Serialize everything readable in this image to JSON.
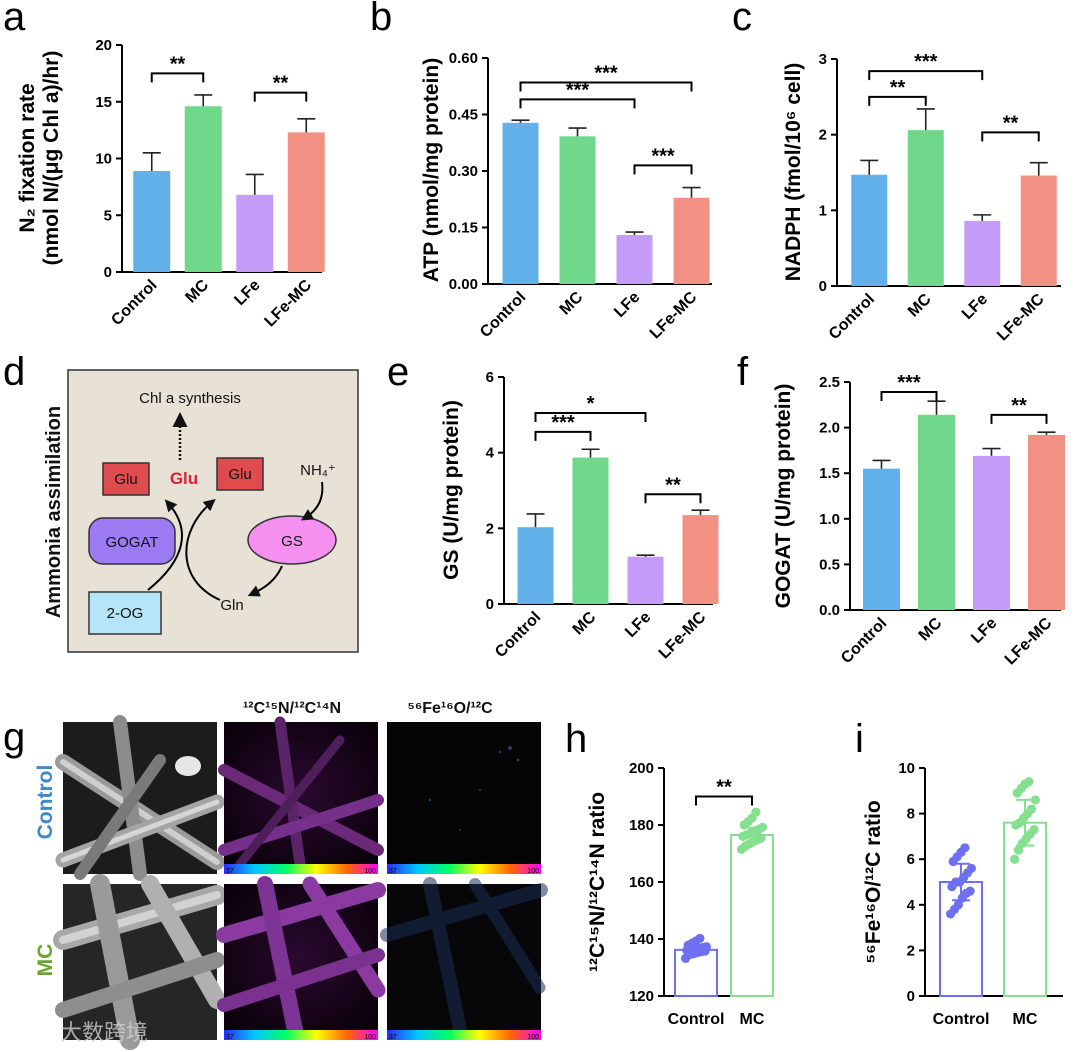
{
  "panels": {
    "a": "a",
    "b": "b",
    "c": "c",
    "d": "d",
    "e": "e",
    "f": "f",
    "g": "g",
    "h": "h",
    "i": "i"
  },
  "colors": {
    "Control": "#62b0ea",
    "MC": "#6fd88b",
    "LFe": "#c49bf7",
    "LFe-MC": "#f39084",
    "h_control": "#6f6ff2",
    "h_mc": "#84e08f",
    "diagram_bg": "#e8e1d6",
    "glu_box": "#e04b4f",
    "gogat_box": "#9b7af2",
    "gs_oval": "#f58ff0",
    "og_box": "#b5e6f7",
    "glu_text": "#e02030"
  },
  "chart_data": [
    {
      "id": "a",
      "type": "bar",
      "categories": [
        "Control",
        "MC",
        "LFe",
        "LFe-MC"
      ],
      "values": [
        8.9,
        14.6,
        6.8,
        12.3
      ],
      "errors": [
        1.6,
        1.0,
        1.8,
        1.2
      ],
      "ylim": [
        0,
        20
      ],
      "yticks": [
        "0",
        "5",
        "10",
        "15",
        "20"
      ],
      "ylabel_line1": "N₂ fixation rate",
      "ylabel_line2": "(nmol N/(μg Chl a)/hr)",
      "sig": [
        {
          "from": 0,
          "to": 1,
          "label": "**",
          "at": 17.5
        },
        {
          "from": 2,
          "to": 3,
          "label": "**",
          "at": 15.8
        }
      ]
    },
    {
      "id": "b",
      "type": "bar",
      "categories": [
        "Control",
        "MC",
        "LFe",
        "LFe-MC"
      ],
      "values": [
        0.428,
        0.392,
        0.13,
        0.229
      ],
      "errors": [
        0.007,
        0.022,
        0.008,
        0.027
      ],
      "ylim": [
        0,
        0.6
      ],
      "yticks": [
        "0.00",
        "0.15",
        "0.30",
        "0.45",
        "0.60"
      ],
      "ylabel": "ATP (nmol/mg protein)",
      "sig": [
        {
          "from": 0,
          "to": 3,
          "label": "***",
          "at": 0.535
        },
        {
          "from": 0,
          "to": 2,
          "label": "***",
          "at": 0.49
        },
        {
          "from": 2,
          "to": 3,
          "label": "***",
          "at": 0.315
        }
      ]
    },
    {
      "id": "c",
      "type": "bar",
      "categories": [
        "Control",
        "MC",
        "LFe",
        "LFe-MC"
      ],
      "values": [
        1.47,
        2.06,
        0.86,
        1.46
      ],
      "errors": [
        0.19,
        0.28,
        0.08,
        0.17
      ],
      "ylim": [
        0,
        3
      ],
      "yticks": [
        "0",
        "1",
        "2",
        "3"
      ],
      "ylabel": "NADPH (fmol/10⁶ cell)",
      "sig": [
        {
          "from": 0,
          "to": 2,
          "label": "***",
          "at": 2.84
        },
        {
          "from": 0,
          "to": 1,
          "label": "**",
          "at": 2.5
        },
        {
          "from": 2,
          "to": 3,
          "label": "**",
          "at": 2.03
        }
      ]
    },
    {
      "id": "e",
      "type": "bar",
      "categories": [
        "Control",
        "MC",
        "LFe",
        "LFe-MC"
      ],
      "values": [
        2.03,
        3.87,
        1.25,
        2.35
      ],
      "errors": [
        0.35,
        0.22,
        0.04,
        0.13
      ],
      "ylim": [
        0,
        6
      ],
      "yticks": [
        "0",
        "2",
        "4",
        "6"
      ],
      "ylabel": "GS (U/mg protein)",
      "sig": [
        {
          "from": 0,
          "to": 2,
          "label": "*",
          "at": 5.05
        },
        {
          "from": 0,
          "to": 1,
          "label": "***",
          "at": 4.55
        },
        {
          "from": 2,
          "to": 3,
          "label": "**",
          "at": 2.9
        }
      ]
    },
    {
      "id": "f",
      "type": "bar",
      "categories": [
        "Control",
        "MC",
        "LFe",
        "LFe-MC"
      ],
      "values": [
        1.55,
        2.14,
        1.69,
        1.92
      ],
      "errors": [
        0.09,
        0.15,
        0.08,
        0.03
      ],
      "ylim": [
        0,
        2.5
      ],
      "yticks": [
        "0.0",
        "0.5",
        "1.0",
        "1.5",
        "2.0",
        "2.5"
      ],
      "ylabel": "GOGAT (U/mg protein)",
      "sig": [
        {
          "from": 0,
          "to": 1,
          "label": "***",
          "at": 2.39
        },
        {
          "from": 2,
          "to": 3,
          "label": "**",
          "at": 2.14
        }
      ]
    },
    {
      "id": "h",
      "type": "scatter-bar",
      "categories": [
        "Control",
        "MC"
      ],
      "values": [
        136.2,
        176.5
      ],
      "errors": [
        1.6,
        2.6
      ],
      "points": [
        [
          133.2,
          134.5,
          134.8,
          135.2,
          135.5,
          135.8,
          136.0,
          136.2,
          136.5,
          136.8,
          137.0,
          137.3,
          137.8,
          138.5,
          139.3,
          140.2
        ],
        [
          171.5,
          172.6,
          173.4,
          174.1,
          174.8,
          175.4,
          176.0,
          176.6,
          177.2,
          177.8,
          178.4,
          179.2,
          180.0,
          181.2,
          182.4,
          184.5
        ]
      ],
      "ylim": [
        120,
        200
      ],
      "yticks": [
        "120",
        "140",
        "160",
        "180",
        "200"
      ],
      "ylabel": "¹²C¹⁵N/¹²C¹⁴N ratio",
      "sig": [
        {
          "from": 0,
          "to": 1,
          "label": "**",
          "at": 190
        }
      ]
    },
    {
      "id": "i",
      "type": "scatter-bar",
      "categories": [
        "Control",
        "MC"
      ],
      "values": [
        5.0,
        7.6
      ],
      "errors": [
        0.8,
        1.0
      ],
      "points": [
        [
          3.6,
          3.8,
          4.0,
          4.3,
          4.5,
          4.6,
          4.8,
          5.0,
          5.0,
          5.2,
          5.4,
          5.6,
          5.9,
          6.1,
          6.3,
          6.5
        ],
        [
          6.0,
          6.4,
          6.7,
          6.9,
          7.1,
          7.3,
          7.5,
          7.6,
          7.8,
          8.0,
          8.2,
          8.6,
          8.9,
          9.1,
          9.3,
          9.4
        ]
      ],
      "ylim": [
        0,
        10
      ],
      "yticks": [
        "0",
        "2",
        "4",
        "6",
        "8",
        "10"
      ],
      "ylabel": "⁵⁶Fe¹⁶O/¹²C ratio",
      "sig": []
    }
  ],
  "diagram": {
    "side_title": "Ammonia assimilation",
    "chl_synthesis": "Chl a synthesis",
    "glu_left": "Glu",
    "glu_center": "Glu",
    "glu_right": "Glu",
    "nh4": "NH₄⁺",
    "gogat": "GOGAT",
    "gs": "GS",
    "og": "2-OG",
    "gln": "Gln"
  },
  "imaging": {
    "col1_header": "¹²C¹⁵N/¹²C¹⁴N",
    "col2_header": "⁵⁶Fe¹⁶O/¹²C",
    "row1_label": "Control",
    "row2_label": "MC",
    "colorbar_min": "37",
    "colorbar_max": "100",
    "row1_color": "#3d89c9",
    "row2_color": "#6aa532"
  },
  "watermark": "大数跨境"
}
